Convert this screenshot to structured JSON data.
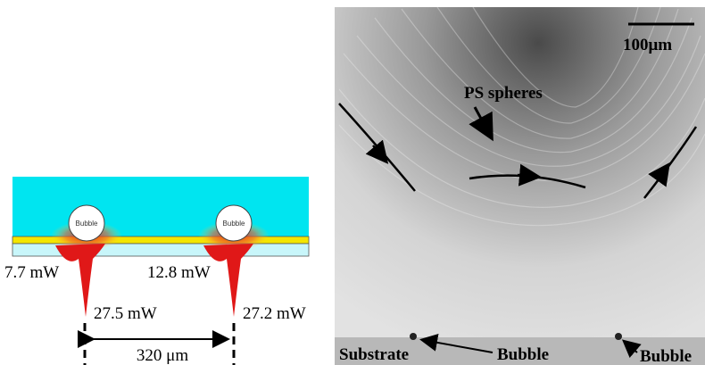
{
  "schematic": {
    "bubble_labels": [
      "Bubble",
      "Bubble"
    ],
    "powers": [
      "7.7 mW",
      "12.8 mW",
      "27.5 mW",
      "27.2 mW"
    ],
    "spacing": "320 μm"
  },
  "micrograph": {
    "scale_bar": "100μm",
    "spheres": "PS spheres",
    "substrate": "Substrate",
    "bubble_left": "Bubble",
    "bubble_right": "Bubble"
  }
}
